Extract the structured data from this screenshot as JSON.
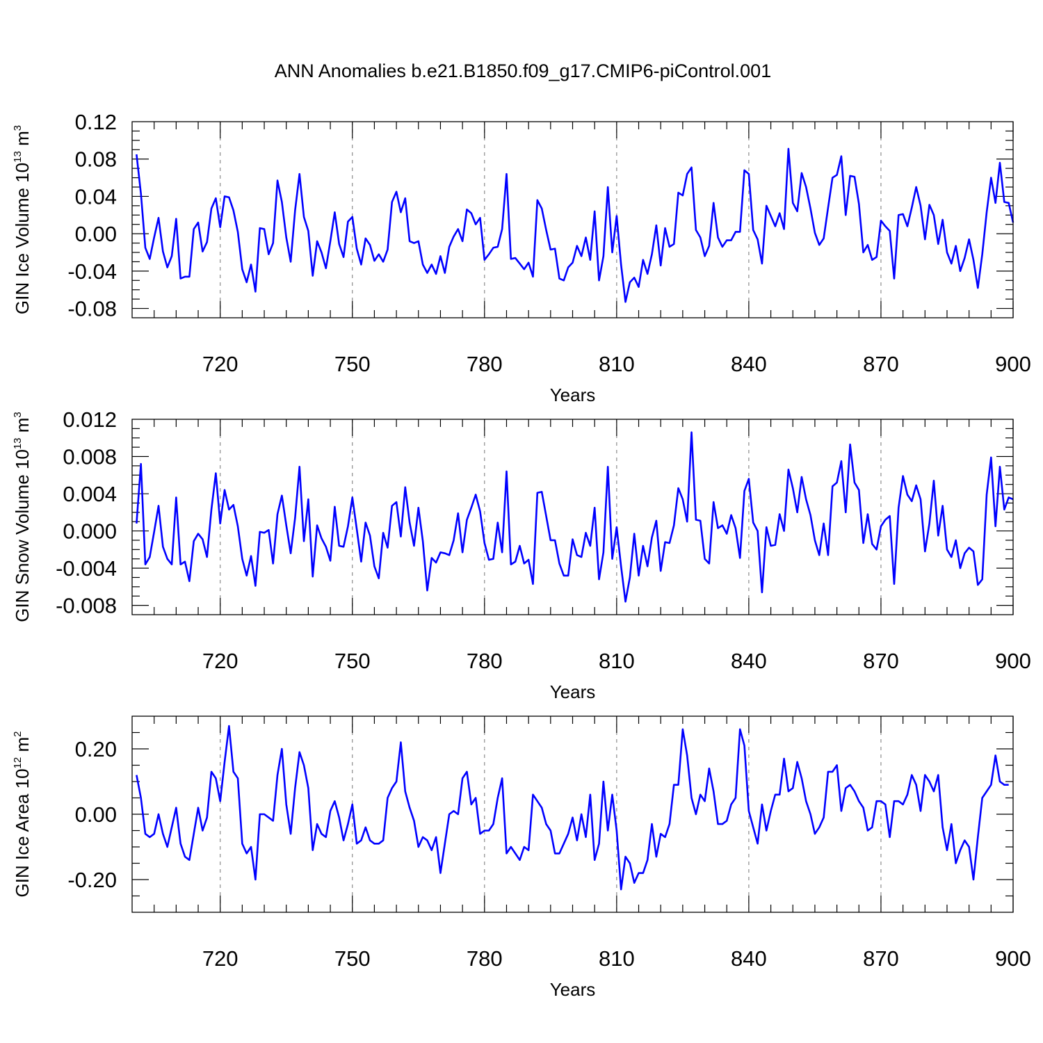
{
  "colors": {
    "series": "#0000ff",
    "axes": "#000000",
    "grid": "#8a8a8a"
  },
  "chart_data": [
    {
      "type": "line",
      "title": "ANN Anomalies b.e21.B1850.f09_g17.CMIP6-piControl.001",
      "xlabel": "Years",
      "ylabel_main": "GIN Ice Volume 10",
      "ylabel_exp": "13",
      "ylabel_unit": " m",
      "ylabel_unit_exp": "3",
      "xlim": [
        700,
        900
      ],
      "ylim": [
        -0.09,
        0.12
      ],
      "xticks": [
        720,
        750,
        780,
        810,
        840,
        870,
        900
      ],
      "yticks": [
        -0.08,
        -0.04,
        0.0,
        0.04,
        0.08,
        0.12
      ],
      "ytick_labels": [
        "-0.08",
        "-0.04",
        "0.00",
        "0.04",
        "0.08",
        "0.12"
      ],
      "grid": "vertical dashed at major x ticks",
      "x_start": 701,
      "values": [
        0.085,
        0.043,
        -0.015,
        -0.027,
        -0.004,
        0.017,
        -0.019,
        -0.036,
        -0.024,
        0.016,
        -0.048,
        -0.046,
        -0.046,
        0.005,
        0.012,
        -0.019,
        -0.009,
        0.027,
        0.038,
        0.007,
        0.04,
        0.039,
        0.025,
        0.002,
        -0.038,
        -0.052,
        -0.033,
        -0.062,
        0.006,
        0.005,
        -0.022,
        -0.01,
        0.057,
        0.034,
        -0.004,
        -0.03,
        0.025,
        0.064,
        0.018,
        0.003,
        -0.045,
        -0.008,
        -0.02,
        -0.037,
        -0.008,
        0.023,
        -0.011,
        -0.025,
        0.013,
        0.018,
        -0.016,
        -0.033,
        -0.005,
        -0.012,
        -0.029,
        -0.022,
        -0.03,
        -0.017,
        0.034,
        0.045,
        0.023,
        0.038,
        -0.008,
        -0.01,
        -0.008,
        -0.033,
        -0.042,
        -0.033,
        -0.043,
        -0.024,
        -0.042,
        -0.014,
        -0.003,
        0.005,
        -0.008,
        0.026,
        0.022,
        0.01,
        0.017,
        -0.028,
        -0.022,
        -0.015,
        -0.014,
        0.005,
        0.064,
        -0.027,
        -0.026,
        -0.032,
        -0.038,
        -0.031,
        -0.046,
        0.036,
        0.027,
        0.004,
        -0.017,
        -0.016,
        -0.048,
        -0.05,
        -0.036,
        -0.031,
        -0.013,
        -0.024,
        -0.004,
        -0.028,
        0.024,
        -0.05,
        -0.024,
        0.05,
        -0.02,
        0.019,
        -0.033,
        -0.073,
        -0.052,
        -0.047,
        -0.057,
        -0.028,
        -0.043,
        -0.022,
        0.009,
        -0.034,
        0.006,
        -0.014,
        -0.011,
        0.044,
        0.041,
        0.064,
        0.071,
        0.004,
        -0.004,
        -0.024,
        -0.013,
        0.033,
        -0.004,
        -0.014,
        -0.007,
        -0.007,
        0.002,
        0.002,
        0.068,
        0.064,
        0.004,
        -0.006,
        -0.032,
        0.03,
        0.019,
        0.008,
        0.022,
        0.005,
        0.091,
        0.033,
        0.024,
        0.065,
        0.05,
        0.027,
        0.001,
        -0.012,
        -0.005,
        0.028,
        0.06,
        0.063,
        0.083,
        0.02,
        0.062,
        0.061,
        0.032,
        -0.02,
        -0.012,
        -0.028,
        -0.025,
        0.014,
        0.008,
        0.003,
        -0.048,
        0.02,
        0.021,
        0.008,
        0.028,
        0.05,
        0.03,
        -0.006,
        0.031,
        0.02,
        -0.011,
        0.015,
        -0.02,
        -0.032,
        -0.013,
        -0.04,
        -0.026,
        -0.006,
        -0.028,
        -0.058,
        -0.022,
        0.023,
        0.06,
        0.033,
        0.076,
        0.034,
        0.033,
        0.012
      ]
    },
    {
      "type": "line",
      "xlabel": "Years",
      "ylabel_main": "GIN Snow Volume 10",
      "ylabel_exp": "13",
      "ylabel_unit": " m",
      "ylabel_unit_exp": "3",
      "xlim": [
        700,
        900
      ],
      "ylim": [
        -0.009,
        0.012
      ],
      "xticks": [
        720,
        750,
        780,
        810,
        840,
        870,
        900
      ],
      "yticks": [
        -0.008,
        -0.004,
        0.0,
        0.004,
        0.008,
        0.012
      ],
      "ytick_labels": [
        "-0.008",
        "-0.004",
        "0.000",
        "0.004",
        "0.008",
        "0.012"
      ],
      "grid": "vertical dashed at major x ticks",
      "x_start": 701,
      "values": [
        0.0008,
        0.0072,
        -0.0036,
        -0.0028,
        -0.0001,
        0.0027,
        -0.0017,
        -0.003,
        -0.0036,
        0.0036,
        -0.0036,
        -0.0033,
        -0.0054,
        -0.0011,
        -0.0003,
        -0.0009,
        -0.0028,
        0.0023,
        0.0062,
        0.0008,
        0.0044,
        0.0023,
        0.0028,
        0.0005,
        -0.003,
        -0.0048,
        -0.0027,
        -0.0059,
        -0.0001,
        -0.0002,
        0.0001,
        -0.0035,
        0.0018,
        0.0038,
        0.0006,
        -0.0024,
        0.0014,
        0.0069,
        -0.0011,
        0.0034,
        -0.0049,
        0.0006,
        -0.0008,
        -0.0017,
        -0.0032,
        0.0026,
        -0.0016,
        -0.0017,
        0.0005,
        0.0036,
        0.0002,
        -0.0033,
        0.0009,
        -0.0005,
        -0.0038,
        -0.0051,
        -0.0002,
        -0.0018,
        0.0027,
        0.0031,
        -0.0006,
        0.0047,
        0.0009,
        -0.0016,
        0.0025,
        -0.0011,
        -0.0064,
        -0.0029,
        -0.0034,
        -0.0023,
        -0.0024,
        -0.0026,
        -0.001,
        0.0019,
        -0.0023,
        0.0012,
        0.0025,
        0.0039,
        0.0021,
        -0.0013,
        -0.0031,
        -0.003,
        0.0009,
        -0.0023,
        0.0064,
        -0.0036,
        -0.0033,
        -0.0016,
        -0.0035,
        -0.0031,
        -0.0057,
        0.0041,
        0.0042,
        0.0016,
        -0.001,
        -0.001,
        -0.0035,
        -0.0048,
        -0.0048,
        -0.0009,
        -0.0026,
        -0.0028,
        -0.0002,
        -0.0016,
        0.0025,
        -0.0052,
        -0.0023,
        0.0069,
        -0.003,
        0.0004,
        -0.0038,
        -0.0076,
        -0.005,
        -0.0003,
        -0.0048,
        -0.0016,
        -0.0038,
        -0.0007,
        0.0011,
        -0.0043,
        -0.0012,
        -0.0013,
        0.0006,
        0.0046,
        0.0034,
        0.001,
        0.0106,
        0.0012,
        0.0011,
        -0.003,
        -0.0035,
        0.0031,
        0.0003,
        0.0006,
        -0.0003,
        0.0017,
        0.0003,
        -0.0029,
        0.0043,
        0.0056,
        0.0009,
        0.0,
        -0.0066,
        0.0004,
        -0.0016,
        -0.0015,
        0.0018,
        0.0,
        0.0066,
        0.0046,
        0.002,
        0.0058,
        0.0034,
        0.0017,
        -0.001,
        -0.0026,
        0.0008,
        -0.0026,
        0.0048,
        0.0052,
        0.0075,
        0.002,
        0.0093,
        0.0052,
        0.0044,
        -0.0013,
        0.0018,
        -0.0014,
        -0.002,
        0.0005,
        0.0012,
        0.0016,
        -0.0057,
        0.0025,
        0.0059,
        0.0039,
        0.0032,
        0.0049,
        0.0034,
        -0.0022,
        0.0008,
        0.0054,
        -0.0005,
        0.0027,
        -0.002,
        -0.0028,
        -0.001,
        -0.004,
        -0.0024,
        -0.0018,
        -0.0022,
        -0.0058,
        -0.0052,
        0.0039,
        0.0079,
        0.0005,
        0.0069,
        0.0023,
        0.0036,
        0.0034
      ]
    },
    {
      "type": "line",
      "xlabel": "Years",
      "ylabel_main": "GIN Ice Area 10",
      "ylabel_exp": "12",
      "ylabel_unit": " m",
      "ylabel_unit_exp": "2",
      "xlim": [
        700,
        900
      ],
      "ylim": [
        -0.3,
        0.3
      ],
      "xticks": [
        720,
        750,
        780,
        810,
        840,
        870,
        900
      ],
      "yticks": [
        -0.2,
        0.0,
        0.2
      ],
      "ytick_labels": [
        "-0.20",
        "0.00",
        "0.20"
      ],
      "grid": "vertical dashed at major x ticks",
      "x_start": 701,
      "values": [
        0.12,
        0.05,
        -0.06,
        -0.07,
        -0.06,
        0.0,
        -0.06,
        -0.1,
        -0.04,
        0.02,
        -0.09,
        -0.13,
        -0.14,
        -0.06,
        0.02,
        -0.05,
        -0.01,
        0.13,
        0.11,
        0.04,
        0.16,
        0.27,
        0.13,
        0.11,
        -0.09,
        -0.12,
        -0.1,
        -0.2,
        0.0,
        0.0,
        -0.01,
        -0.02,
        0.12,
        0.2,
        0.03,
        -0.06,
        0.08,
        0.19,
        0.15,
        0.08,
        -0.11,
        -0.03,
        -0.06,
        -0.07,
        0.01,
        0.04,
        -0.01,
        -0.08,
        -0.03,
        0.03,
        -0.09,
        -0.08,
        -0.04,
        -0.08,
        -0.09,
        -0.09,
        -0.08,
        0.05,
        0.08,
        0.1,
        0.22,
        0.07,
        0.02,
        -0.02,
        -0.1,
        -0.07,
        -0.08,
        -0.11,
        -0.07,
        -0.18,
        -0.09,
        0.0,
        0.01,
        0.0,
        0.11,
        0.13,
        0.03,
        0.05,
        -0.06,
        -0.05,
        -0.05,
        -0.03,
        0.05,
        0.11,
        -0.12,
        -0.1,
        -0.12,
        -0.14,
        -0.1,
        -0.11,
        0.06,
        0.04,
        0.02,
        -0.03,
        -0.05,
        -0.12,
        -0.12,
        -0.09,
        -0.06,
        -0.01,
        -0.08,
        0.0,
        -0.07,
        0.06,
        -0.14,
        -0.09,
        0.1,
        -0.05,
        0.06,
        -0.05,
        -0.23,
        -0.13,
        -0.15,
        -0.21,
        -0.18,
        -0.18,
        -0.14,
        -0.03,
        -0.13,
        -0.06,
        -0.07,
        -0.03,
        0.09,
        0.09,
        0.26,
        0.18,
        0.05,
        0.0,
        0.06,
        0.04,
        0.14,
        0.07,
        -0.03,
        -0.03,
        -0.02,
        0.03,
        0.05,
        0.26,
        0.21,
        0.01,
        -0.04,
        -0.09,
        0.03,
        -0.05,
        0.01,
        0.06,
        0.06,
        0.17,
        0.07,
        0.08,
        0.16,
        0.11,
        0.04,
        0.0,
        -0.06,
        -0.04,
        -0.01,
        0.13,
        0.13,
        0.15,
        0.01,
        0.08,
        0.09,
        0.07,
        0.04,
        0.02,
        -0.05,
        -0.04,
        0.04,
        0.04,
        0.03,
        -0.07,
        0.04,
        0.04,
        0.03,
        0.06,
        0.12,
        0.09,
        0.01,
        0.12,
        0.1,
        0.07,
        0.12,
        -0.04,
        -0.11,
        -0.03,
        -0.15,
        -0.11,
        -0.08,
        -0.1,
        -0.2,
        -0.07,
        0.05,
        0.07,
        0.09,
        0.18,
        0.1,
        0.09,
        0.09
      ]
    }
  ]
}
